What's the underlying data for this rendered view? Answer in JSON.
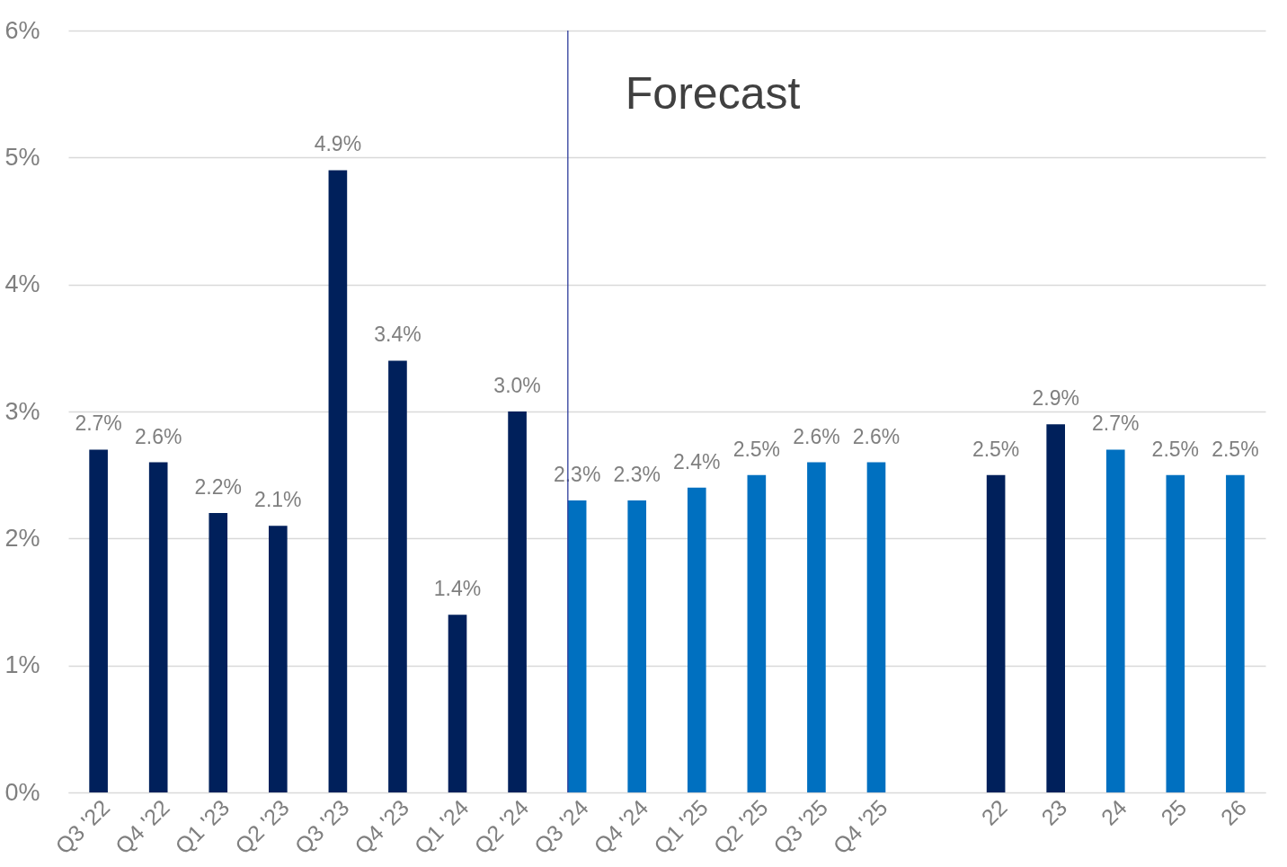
{
  "chart_data": {
    "type": "bar",
    "categories": [
      "Q3 '22",
      "Q4 '22",
      "Q1 '23",
      "Q2 '23",
      "Q3 '23",
      "Q4 '23",
      "Q1 '24",
      "Q2 '24",
      "Q3 '24",
      "Q4 '24",
      "Q1 '25",
      "Q2 '25",
      "Q3 '25",
      "Q4 '25",
      null,
      "22",
      "23",
      "24",
      "25",
      "26"
    ],
    "values": [
      2.7,
      2.6,
      2.2,
      2.1,
      4.9,
      3.4,
      1.4,
      3.0,
      2.3,
      2.3,
      2.4,
      2.5,
      2.6,
      2.6,
      null,
      2.5,
      2.9,
      2.7,
      2.5,
      2.5
    ],
    "value_labels": [
      "2.7%",
      "2.6%",
      "2.2%",
      "2.1%",
      "4.9%",
      "3.4%",
      "1.4%",
      "3.0%",
      "2.3%",
      "2.3%",
      "2.4%",
      "2.5%",
      "2.6%",
      "2.6%",
      null,
      "2.5%",
      "2.9%",
      "2.7%",
      "2.5%",
      "2.5%"
    ],
    "colors": [
      "#00205b",
      "#00205b",
      "#00205b",
      "#00205b",
      "#00205b",
      "#00205b",
      "#00205b",
      "#00205b",
      "#0070c0",
      "#0070c0",
      "#0070c0",
      "#0070c0",
      "#0070c0",
      "#0070c0",
      "#0070c0",
      "#00205b",
      "#00205b",
      "#0070c0",
      "#0070c0",
      "#0070c0"
    ],
    "ylim": [
      0,
      6
    ],
    "yticks": [
      {
        "value": 0,
        "label": "0%"
      },
      {
        "value": 1,
        "label": "1%"
      },
      {
        "value": 2,
        "label": "2%"
      },
      {
        "value": 3,
        "label": "3%"
      },
      {
        "value": 4,
        "label": "4%"
      },
      {
        "value": 5,
        "label": "5%"
      },
      {
        "value": 6,
        "label": "6%"
      }
    ],
    "grid": "y",
    "ref_lines": [
      {
        "axis": "x",
        "value": "Q3 '24",
        "label": "Forecast",
        "color": "#2e3c9c"
      }
    ]
  }
}
